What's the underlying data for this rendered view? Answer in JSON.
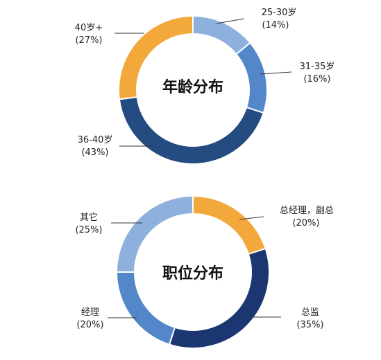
{
  "chart_data": [
    {
      "type": "pie",
      "title": "年龄分布",
      "categories": [
        "25-30岁",
        "31-35岁",
        "36-40岁",
        "40岁+"
      ],
      "values": [
        14,
        16,
        43,
        27
      ],
      "value_labels": [
        "(14%)",
        "(16%)",
        "(43%)",
        "(27%)"
      ],
      "colors": [
        "#8DB0DD",
        "#5487C9",
        "#244C80",
        "#F3A83B"
      ]
    },
    {
      "type": "pie",
      "title": "职位分布",
      "categories": [
        "总经理，副总",
        "总监",
        "经理",
        "其它"
      ],
      "values": [
        20,
        35,
        20,
        25
      ],
      "value_labels": [
        "(20%)",
        "(35%)",
        "(20%)",
        "(25%)"
      ],
      "colors": [
        "#F3A83B",
        "#1B3670",
        "#5487C9",
        "#8DB0DD"
      ]
    }
  ]
}
